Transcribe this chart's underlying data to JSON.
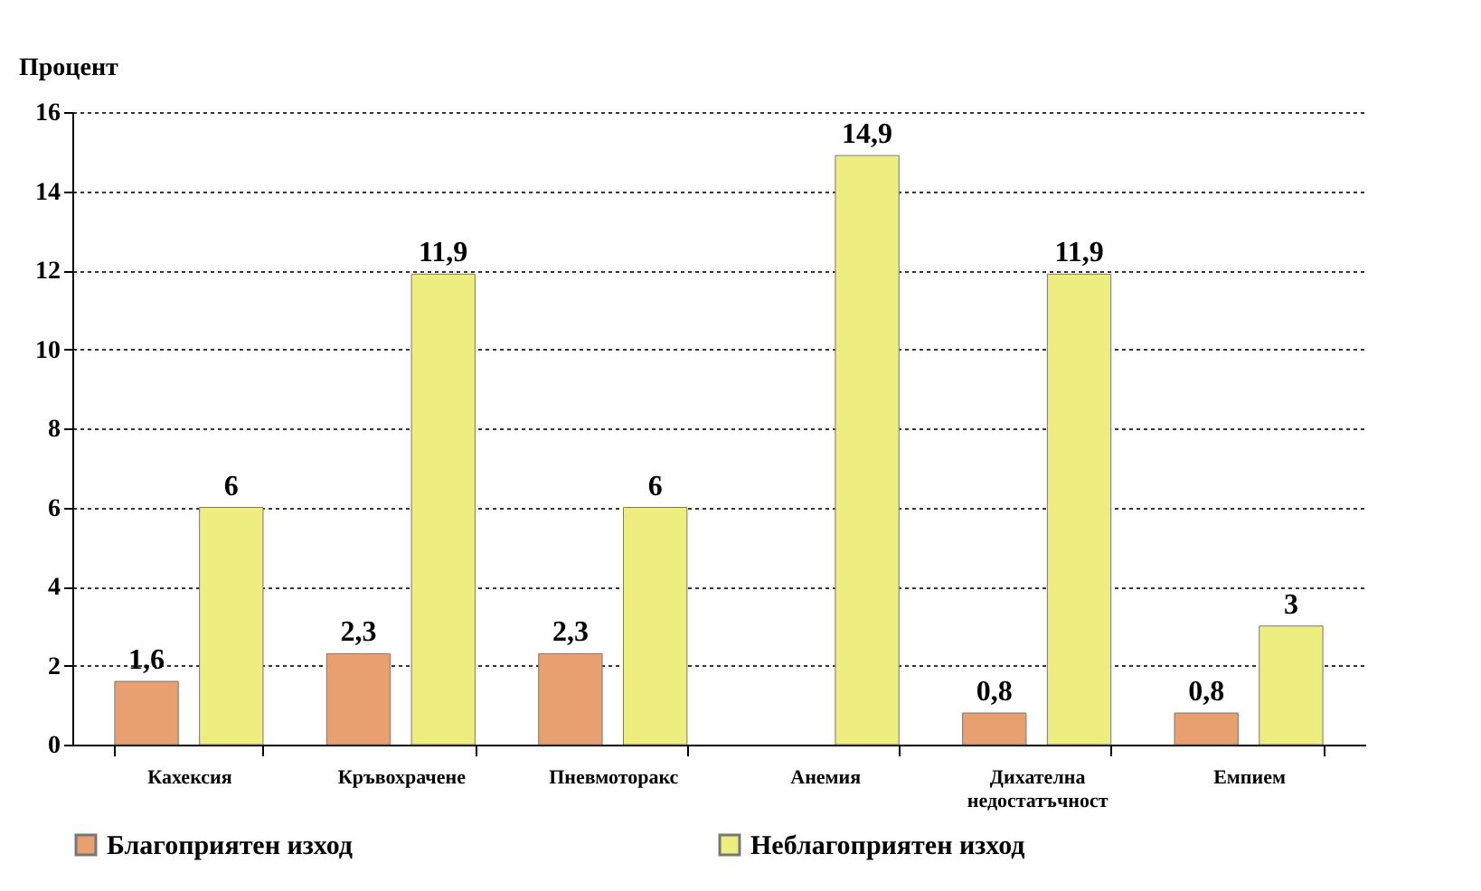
{
  "chart_data": {
    "type": "bar",
    "ylabel": "Процент",
    "categories": [
      "Кахексия",
      "Кръвохрачене",
      "Пневмоторакс",
      "Анемия",
      "Дихателна недостатъчност",
      "Емпием"
    ],
    "series": [
      {
        "name": "Благоприятен изход",
        "color": "#e8a070",
        "values": [
          1.6,
          2.3,
          2.3,
          null,
          0.8,
          0.8
        ],
        "value_labels": [
          "1,6",
          "2,3",
          "2,3",
          null,
          "0,8",
          "0,8"
        ]
      },
      {
        "name": "Неблагоприятен изход",
        "color": "#eeee80",
        "values": [
          6,
          11.9,
          6,
          14.9,
          11.9,
          3
        ],
        "value_labels": [
          "6",
          "11,9",
          "6",
          "14,9",
          "11,9",
          "3"
        ]
      }
    ],
    "ylim": [
      0,
      16
    ],
    "yticks": [
      0,
      2,
      4,
      6,
      8,
      10,
      12,
      14,
      16
    ],
    "grid": "y",
    "legend": "bottom"
  }
}
